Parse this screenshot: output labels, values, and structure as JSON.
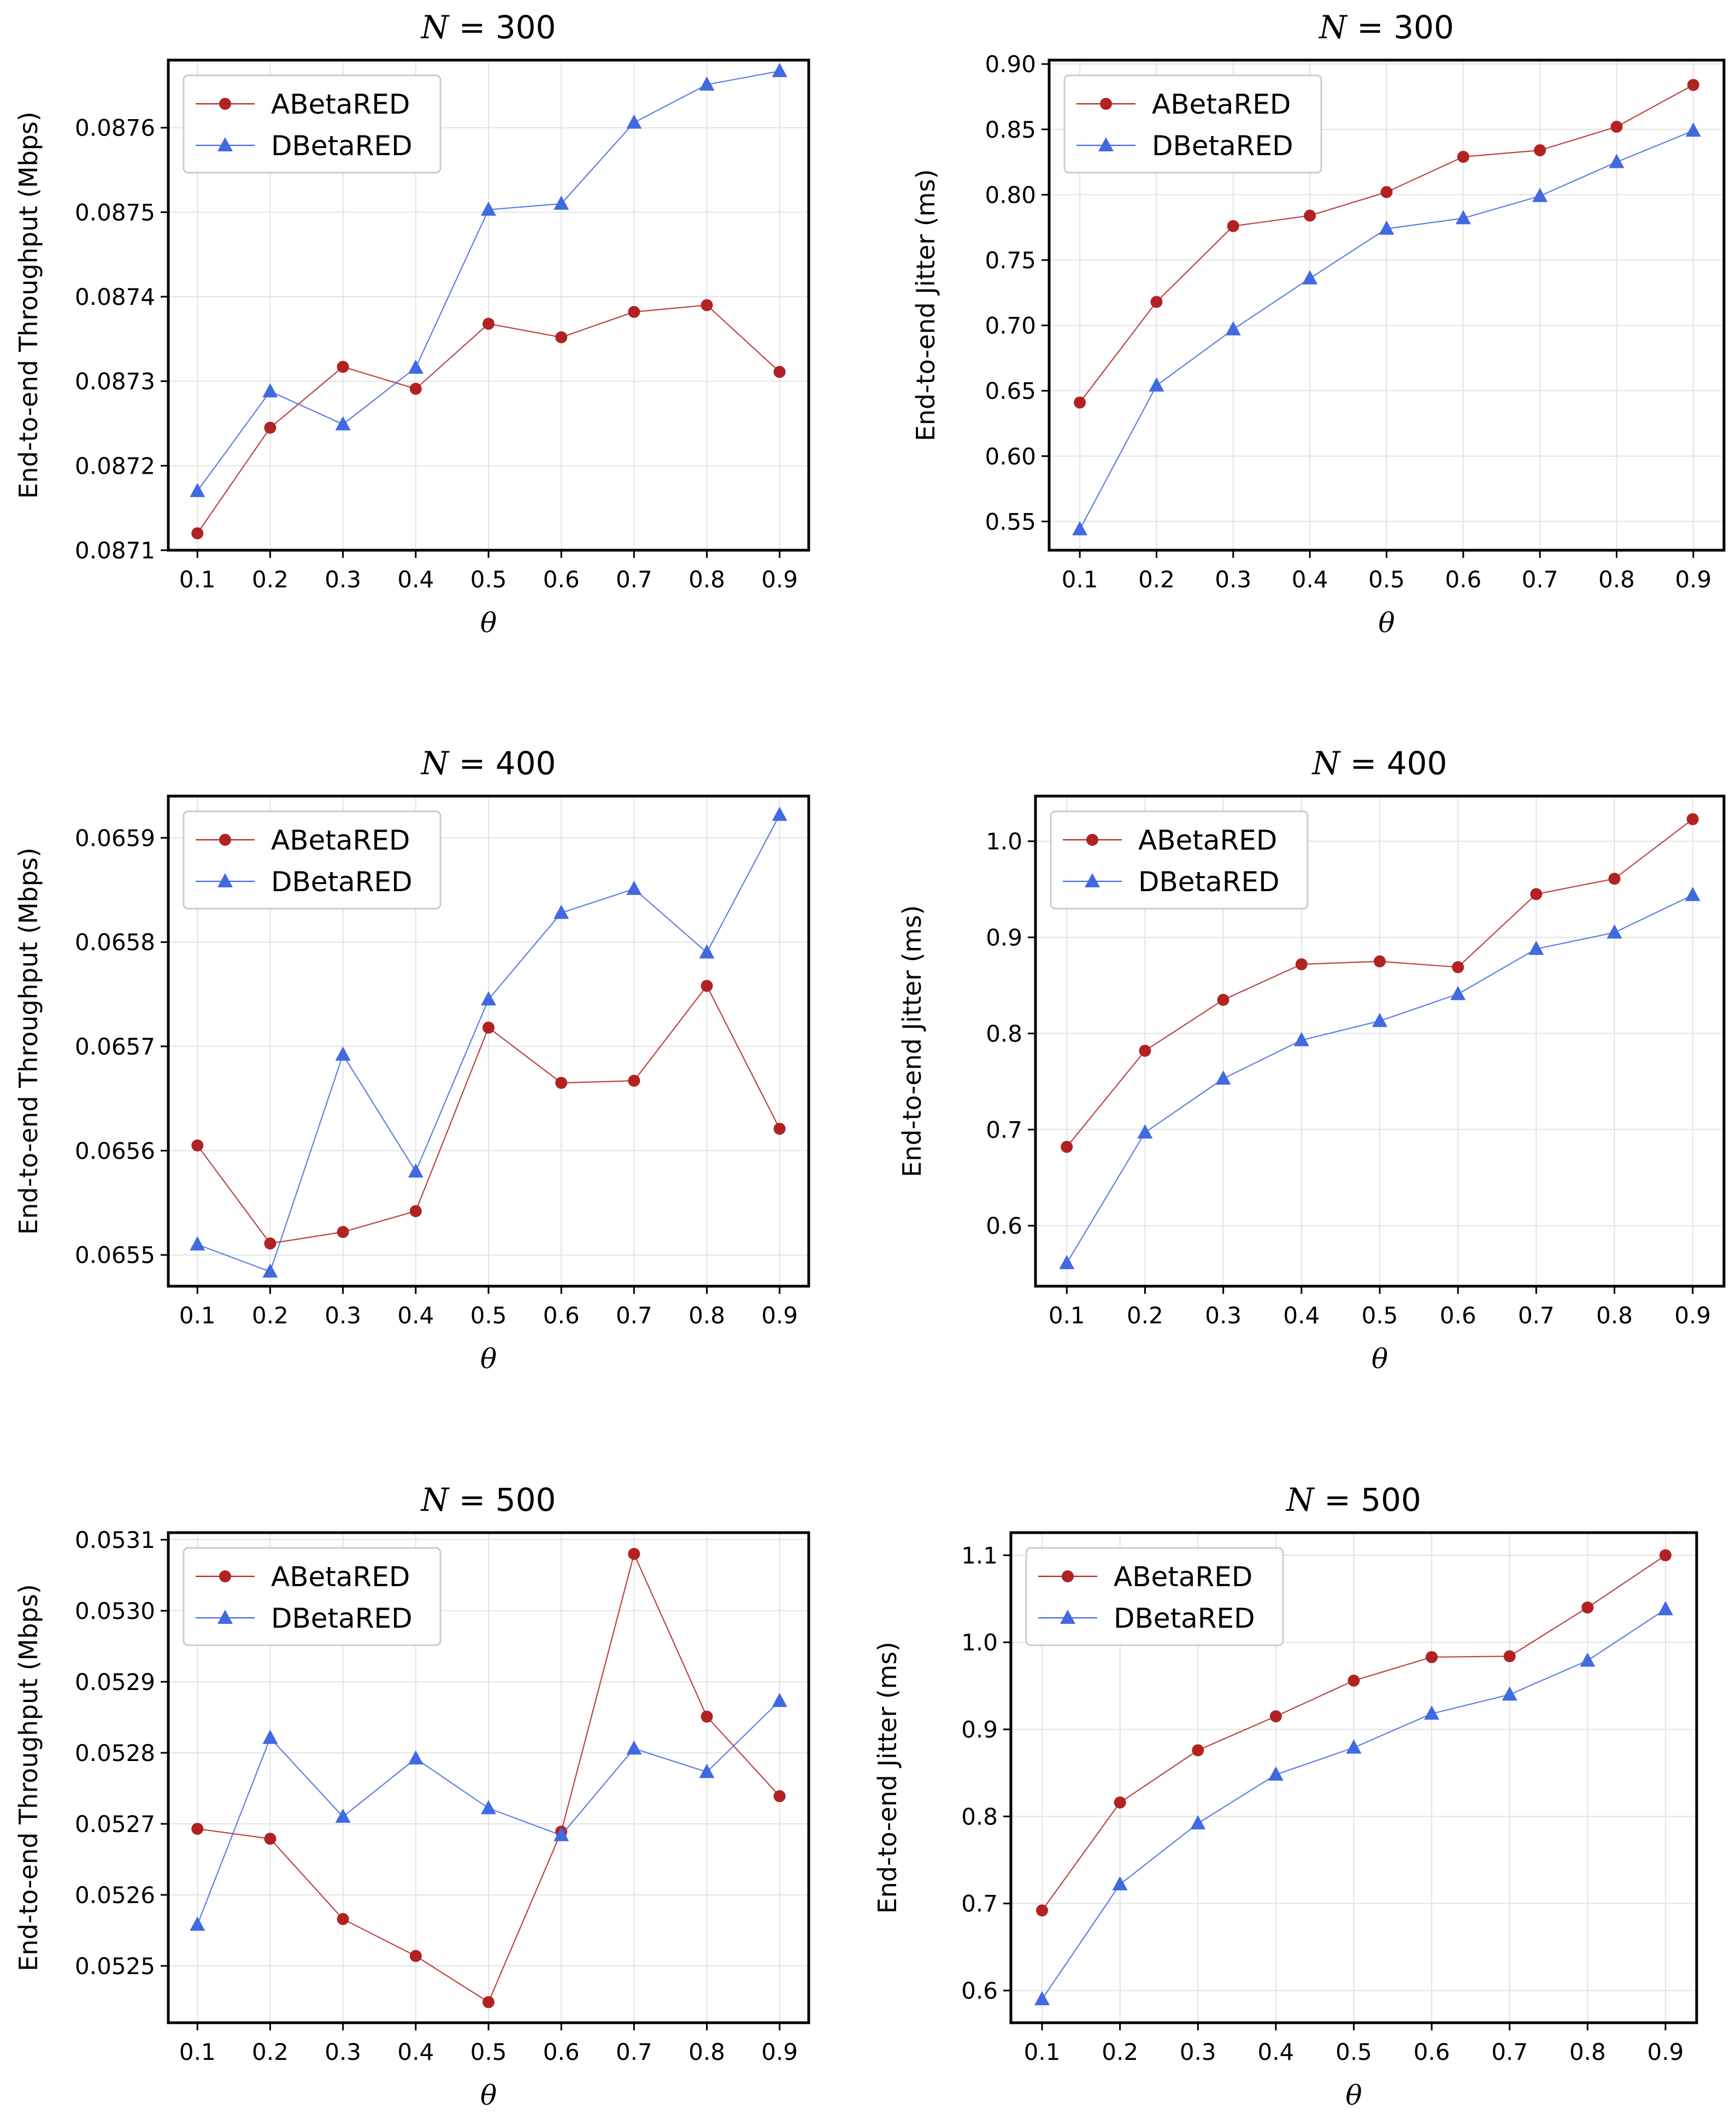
{
  "chart_data": [
    {
      "type": "line",
      "title": "N = 300",
      "xlabel": "θ",
      "ylabel": "End-to-end Throughput (Mbps)",
      "x": [
        0.1,
        0.2,
        0.3,
        0.4,
        0.5,
        0.6,
        0.7,
        0.8,
        0.9
      ],
      "x_ticks": [
        "0.1",
        "0.2",
        "0.3",
        "0.4",
        "0.5",
        "0.6",
        "0.7",
        "0.8",
        "0.9"
      ],
      "ylim": [
        0.0871,
        0.08768
      ],
      "y_ticks": [
        0.0871,
        0.0872,
        0.0873,
        0.0874,
        0.0875,
        0.0876
      ],
      "y_tick_labels": [
        "0.0871",
        "0.0872",
        "0.0873",
        "0.0874",
        "0.0875",
        "0.0876"
      ],
      "series": [
        {
          "name": "ABetaRED",
          "color": "#b22222",
          "marker": "circle",
          "values": [
            0.08712,
            0.087245,
            0.087317,
            0.087291,
            0.087368,
            0.087352,
            0.087382,
            0.08739,
            0.087311
          ]
        },
        {
          "name": "DBetaRED",
          "color": "#4169e1",
          "marker": "triangle",
          "values": [
            0.08717,
            0.087288,
            0.087249,
            0.087316,
            0.087503,
            0.08751,
            0.087606,
            0.087651,
            0.087667
          ]
        }
      ],
      "legend": "upper-left"
    },
    {
      "type": "line",
      "title": "N = 300",
      "xlabel": "θ",
      "ylabel": "End-to-end Jitter (ms)",
      "x": [
        0.1,
        0.2,
        0.3,
        0.4,
        0.5,
        0.6,
        0.7,
        0.8,
        0.9
      ],
      "x_ticks": [
        "0.1",
        "0.2",
        "0.3",
        "0.4",
        "0.5",
        "0.6",
        "0.7",
        "0.8",
        "0.9"
      ],
      "ylim": [
        0.528,
        0.903
      ],
      "y_ticks": [
        0.55,
        0.6,
        0.65,
        0.7,
        0.75,
        0.8,
        0.85,
        0.9
      ],
      "y_tick_labels": [
        "0.55",
        "0.60",
        "0.65",
        "0.70",
        "0.75",
        "0.80",
        "0.85",
        "0.90"
      ],
      "series": [
        {
          "name": "ABetaRED",
          "color": "#b22222",
          "marker": "circle",
          "values": [
            0.641,
            0.718,
            0.776,
            0.784,
            0.802,
            0.829,
            0.834,
            0.852,
            0.884
          ]
        },
        {
          "name": "DBetaRED",
          "color": "#4169e1",
          "marker": "triangle",
          "values": [
            0.544,
            0.654,
            0.697,
            0.736,
            0.774,
            0.782,
            0.799,
            0.825,
            0.849
          ]
        }
      ],
      "legend": "upper-left"
    },
    {
      "type": "line",
      "title": "N = 400",
      "xlabel": "θ",
      "ylabel": "End-to-end Throughput (Mbps)",
      "x": [
        0.1,
        0.2,
        0.3,
        0.4,
        0.5,
        0.6,
        0.7,
        0.8,
        0.9
      ],
      "x_ticks": [
        "0.1",
        "0.2",
        "0.3",
        "0.4",
        "0.5",
        "0.6",
        "0.7",
        "0.8",
        "0.9"
      ],
      "ylim": [
        0.06547,
        0.06594
      ],
      "y_ticks": [
        0.0655,
        0.0656,
        0.0657,
        0.0658,
        0.0659
      ],
      "y_tick_labels": [
        "0.0655",
        "0.0656",
        "0.0657",
        "0.0658",
        "0.0659"
      ],
      "series": [
        {
          "name": "ABetaRED",
          "color": "#b22222",
          "marker": "circle",
          "values": [
            0.065605,
            0.065511,
            0.065522,
            0.065542,
            0.065718,
            0.065665,
            0.065667,
            0.065758,
            0.065621
          ]
        },
        {
          "name": "DBetaRED",
          "color": "#4169e1",
          "marker": "triangle",
          "values": [
            0.06551,
            0.065484,
            0.065692,
            0.06558,
            0.065745,
            0.065828,
            0.065851,
            0.06579,
            0.065922
          ]
        }
      ],
      "legend": "upper-left"
    },
    {
      "type": "line",
      "title": "N = 400",
      "xlabel": "θ",
      "ylabel": "End-to-end Jitter (ms)",
      "x": [
        0.1,
        0.2,
        0.3,
        0.4,
        0.5,
        0.6,
        0.7,
        0.8,
        0.9
      ],
      "x_ticks": [
        "0.1",
        "0.2",
        "0.3",
        "0.4",
        "0.5",
        "0.6",
        "0.7",
        "0.8",
        "0.9"
      ],
      "ylim": [
        0.537,
        1.047
      ],
      "y_ticks": [
        0.6,
        0.7,
        0.8,
        0.9,
        1.0
      ],
      "y_tick_labels": [
        "0.6",
        "0.7",
        "0.8",
        "0.9",
        "1.0"
      ],
      "series": [
        {
          "name": "ABetaRED",
          "color": "#b22222",
          "marker": "circle",
          "values": [
            0.682,
            0.782,
            0.835,
            0.872,
            0.875,
            0.869,
            0.945,
            0.961,
            1.023
          ]
        },
        {
          "name": "DBetaRED",
          "color": "#4169e1",
          "marker": "triangle",
          "values": [
            0.561,
            0.697,
            0.753,
            0.793,
            0.813,
            0.841,
            0.888,
            0.905,
            0.944
          ]
        }
      ],
      "legend": "upper-left"
    },
    {
      "type": "line",
      "title": "N = 500",
      "xlabel": "θ",
      "ylabel": "End-to-end Throughput (Mbps)",
      "x": [
        0.1,
        0.2,
        0.3,
        0.4,
        0.5,
        0.6,
        0.7,
        0.8,
        0.9
      ],
      "x_ticks": [
        "0.1",
        "0.2",
        "0.3",
        "0.4",
        "0.5",
        "0.6",
        "0.7",
        "0.8",
        "0.9"
      ],
      "ylim": [
        0.05242,
        0.05311
      ],
      "y_ticks": [
        0.0525,
        0.0526,
        0.0527,
        0.0528,
        0.0529,
        0.053,
        0.0531
      ],
      "y_tick_labels": [
        "0.0525",
        "0.0526",
        "0.0527",
        "0.0528",
        "0.0529",
        "0.0530",
        "0.0531"
      ],
      "series": [
        {
          "name": "ABetaRED",
          "color": "#b22222",
          "marker": "circle",
          "values": [
            0.052693,
            0.052679,
            0.052566,
            0.052514,
            0.052449,
            0.052689,
            0.05308,
            0.052851,
            0.052739
          ]
        },
        {
          "name": "DBetaRED",
          "color": "#4169e1",
          "marker": "triangle",
          "values": [
            0.052558,
            0.052821,
            0.05271,
            0.052792,
            0.052722,
            0.052684,
            0.052806,
            0.052773,
            0.052873
          ]
        }
      ],
      "legend": "upper-left"
    },
    {
      "type": "line",
      "title": "N = 500",
      "xlabel": "θ",
      "ylabel": "End-to-end Jitter (ms)",
      "x": [
        0.1,
        0.2,
        0.3,
        0.4,
        0.5,
        0.6,
        0.7,
        0.8,
        0.9
      ],
      "x_ticks": [
        "0.1",
        "0.2",
        "0.3",
        "0.4",
        "0.5",
        "0.6",
        "0.7",
        "0.8",
        "0.9"
      ],
      "ylim": [
        0.563,
        1.126
      ],
      "y_ticks": [
        0.6,
        0.7,
        0.8,
        0.9,
        1.0,
        1.1
      ],
      "y_tick_labels": [
        "0.6",
        "0.7",
        "0.8",
        "0.9",
        "1.0",
        "1.1"
      ],
      "series": [
        {
          "name": "ABetaRED",
          "color": "#b22222",
          "marker": "circle",
          "values": [
            0.692,
            0.816,
            0.876,
            0.915,
            0.956,
            0.983,
            0.984,
            1.04,
            1.1
          ]
        },
        {
          "name": "DBetaRED",
          "color": "#4169e1",
          "marker": "triangle",
          "values": [
            0.59,
            0.722,
            0.792,
            0.848,
            0.879,
            0.918,
            0.94,
            0.979,
            1.038
          ]
        }
      ],
      "legend": "upper-left"
    }
  ]
}
